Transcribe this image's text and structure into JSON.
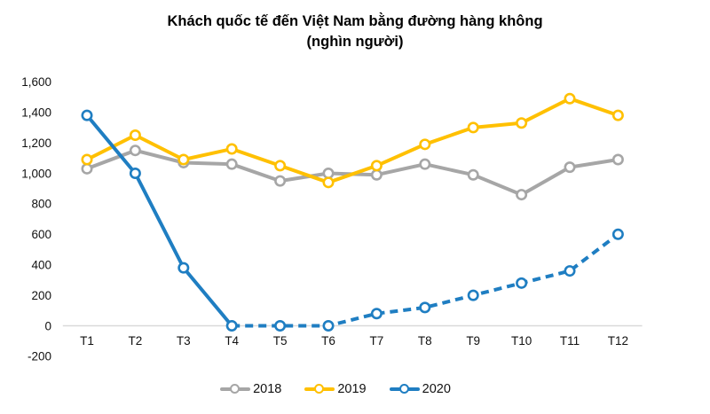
{
  "chart_data": {
    "type": "line",
    "title": "Khách quốc tế đến Việt Nam bằng đường hàng không",
    "subtitle": "(nghìn người)",
    "categories": [
      "T1",
      "T2",
      "T3",
      "T4",
      "T5",
      "T6",
      "T7",
      "T8",
      "T9",
      "T10",
      "T11",
      "T12"
    ],
    "series": [
      {
        "name": "2018",
        "color": "#A6A6A6",
        "style": "solid",
        "values": [
          1030,
          1150,
          1070,
          1060,
          950,
          1000,
          990,
          1060,
          990,
          860,
          1040,
          1090
        ]
      },
      {
        "name": "2019",
        "color": "#FFC000",
        "style": "solid",
        "values": [
          1090,
          1250,
          1090,
          1160,
          1050,
          940,
          1050,
          1190,
          1300,
          1330,
          1490,
          1380
        ]
      },
      {
        "name": "2020",
        "color": "#1F7EC2",
        "style": "solid_then_dashed",
        "dash_from_index": 3,
        "values": [
          1380,
          1000,
          380,
          0,
          0,
          0,
          80,
          120,
          200,
          280,
          360,
          600
        ]
      }
    ],
    "ylim": [
      -200,
      1600
    ],
    "ytick_step": 200,
    "grid": false,
    "zero_line_color": "#D9D9D9",
    "legend_position": "bottom",
    "marker": "open-circle"
  }
}
